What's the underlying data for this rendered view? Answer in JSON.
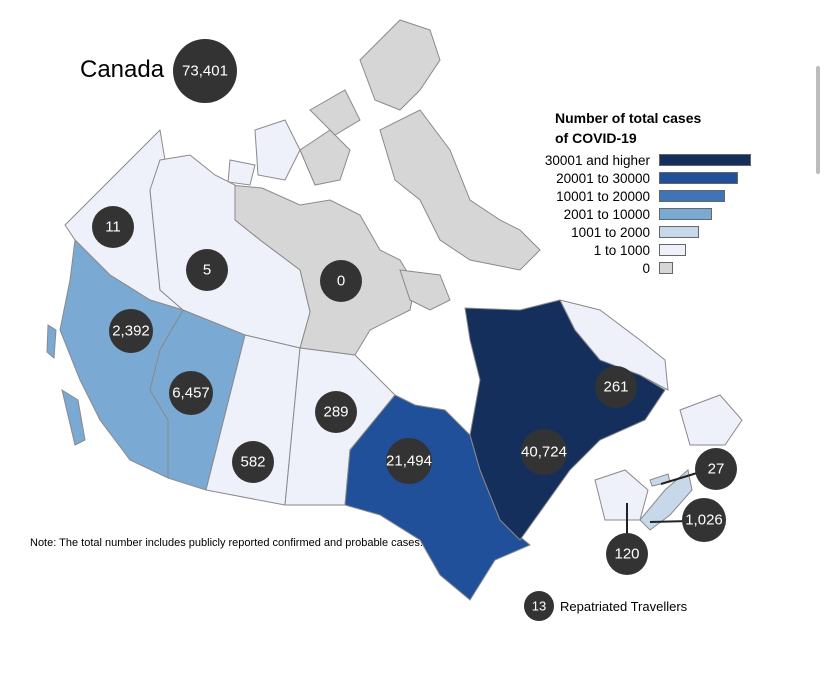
{
  "title": "Canada",
  "total": "73,401",
  "legend": {
    "title_line1": "Number of total cases",
    "title_line2": "of COVID-19",
    "items": [
      {
        "label": "30001 and higher",
        "color": "#152f5c"
      },
      {
        "label": "20001 to 30000",
        "color": "#21509a"
      },
      {
        "label": "10001 to 20000",
        "color": "#3f74b7"
      },
      {
        "label": "2001 to 10000",
        "color": "#7aaad4"
      },
      {
        "label": "1001 to 2000",
        "color": "#c7d8ea"
      },
      {
        "label": "1 to 1000",
        "color": "#eef0fa"
      },
      {
        "label": "0",
        "color": "#d6d6d6"
      }
    ]
  },
  "regions": [
    {
      "name": "Yukon",
      "cases": "11"
    },
    {
      "name": "Northwest Territories",
      "cases": "5"
    },
    {
      "name": "Nunavut",
      "cases": "0"
    },
    {
      "name": "British Columbia",
      "cases": "2,392"
    },
    {
      "name": "Alberta",
      "cases": "6,457"
    },
    {
      "name": "Saskatchewan",
      "cases": "582"
    },
    {
      "name": "Manitoba",
      "cases": "289"
    },
    {
      "name": "Ontario",
      "cases": "21,494"
    },
    {
      "name": "Quebec",
      "cases": "40,724"
    },
    {
      "name": "Newfoundland and Labrador",
      "cases": "261"
    },
    {
      "name": "Prince Edward Island",
      "cases": "27"
    },
    {
      "name": "Nova Scotia",
      "cases": "1,026"
    },
    {
      "name": "New Brunswick",
      "cases": "120"
    }
  ],
  "repatriated": {
    "count": "13",
    "label": "Repatriated Travellers"
  },
  "note": "Note: The total number includes publicly reported confirmed and probable cases."
}
